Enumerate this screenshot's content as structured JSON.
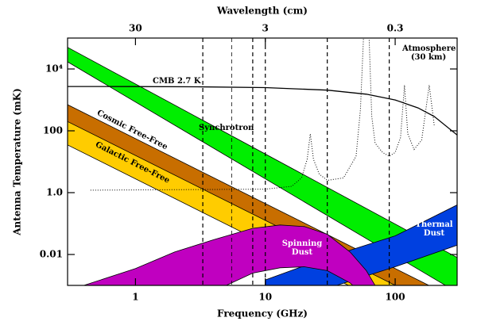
{
  "chart_data": {
    "type": "band",
    "title_top": "Wavelength (cm)",
    "x_label": "Frequency (GHz)",
    "y_label": "Antenna Temperature (mK)",
    "log_x": true,
    "log_y": true,
    "xlim": [
      0.3,
      300
    ],
    "ylim": [
      0.001,
      100000
    ],
    "xticks": [
      1,
      10,
      100
    ],
    "yticks": [
      {
        "value": 10000,
        "label": "10⁴"
      },
      100,
      {
        "value": 1,
        "label": "1.0"
      },
      0.01
    ],
    "x2lim": [
      100,
      0.1
    ],
    "x2ticks": [
      30,
      3,
      0.3
    ],
    "vlines": [
      3.3,
      5.5,
      8,
      10,
      30,
      90
    ],
    "series": [
      {
        "name": "Cosmic Free-Free",
        "kind": "band",
        "color": "#c86e00",
        "upper": {
          "x": [
            0.3,
            300
          ],
          "values": [
            700,
            0.00035
          ]
        },
        "lower": {
          "x": [
            0.3,
            300
          ],
          "values": [
            180,
            9e-05
          ]
        }
      },
      {
        "name": "Galactic Free-Free",
        "kind": "band",
        "color": "#ffcc00",
        "upper": {
          "x": [
            0.3,
            300
          ],
          "values": [
            200,
            0.0001
          ]
        },
        "lower": {
          "x": [
            0.3,
            300
          ],
          "values": [
            35,
            1.75e-05
          ]
        }
      },
      {
        "name": "Synchrotron",
        "kind": "band",
        "color": "#00ee00",
        "upper": {
          "x": [
            0.3,
            300
          ],
          "values": [
            50000,
            0.008
          ]
        },
        "lower": {
          "x": [
            0.3,
            300
          ],
          "values": [
            17000,
            0.0006
          ]
        }
      },
      {
        "name": "Thermal Dust",
        "kind": "band",
        "color": "#0040e0",
        "upper": {
          "x": [
            10,
            30,
            100,
            300
          ],
          "values": [
            0.0015,
            0.008,
            0.04,
            0.4
          ]
        },
        "lower": {
          "x": [
            10,
            30,
            100,
            300
          ],
          "values": [
            0.0001,
            0.0008,
            0.004,
            0.02
          ]
        }
      },
      {
        "name": "Spinning Dust",
        "kind": "band",
        "color": "#c000c0",
        "upper": {
          "x": [
            0.4,
            1,
            2,
            4,
            8,
            13,
            20,
            30,
            45,
            60,
            70
          ],
          "values": [
            0.001,
            0.0035,
            0.012,
            0.03,
            0.07,
            0.09,
            0.08,
            0.045,
            0.012,
            0.003,
            0.001
          ]
        },
        "lower": {
          "x": [
            3,
            5,
            8,
            13,
            20,
            30,
            45,
            60
          ],
          "values": [
            0.0003,
            0.001,
            0.0025,
            0.0037,
            0.004,
            0.003,
            0.0012,
            0.0004
          ]
        }
      },
      {
        "name": "CMB 2.7 K",
        "kind": "line",
        "color": "#000000",
        "x": [
          0.3,
          1,
          3,
          10,
          30,
          60,
          100,
          150,
          200,
          300
        ],
        "values": [
          2718,
          2700,
          2654,
          2490,
          2068,
          1534,
          995,
          552,
          292,
          73
        ]
      },
      {
        "name": "Atmosphere (30 km)",
        "kind": "dotted",
        "color": "#000000",
        "x": [
          0.45,
          10,
          16,
          19,
          21,
          22.2,
          23.5,
          26,
          30,
          40,
          50,
          54,
          57,
          60,
          63,
          66,
          70,
          80,
          90,
          100,
          110,
          118,
          125,
          140,
          160,
          183,
          200
        ],
        "values": [
          1.2,
          1.3,
          1.6,
          3,
          12,
          80,
          12,
          4,
          2.5,
          3,
          15,
          500,
          100000,
          100000,
          100000,
          300,
          40,
          20,
          15,
          20,
          60,
          3000,
          80,
          25,
          50,
          3000,
          150
        ]
      }
    ]
  }
}
